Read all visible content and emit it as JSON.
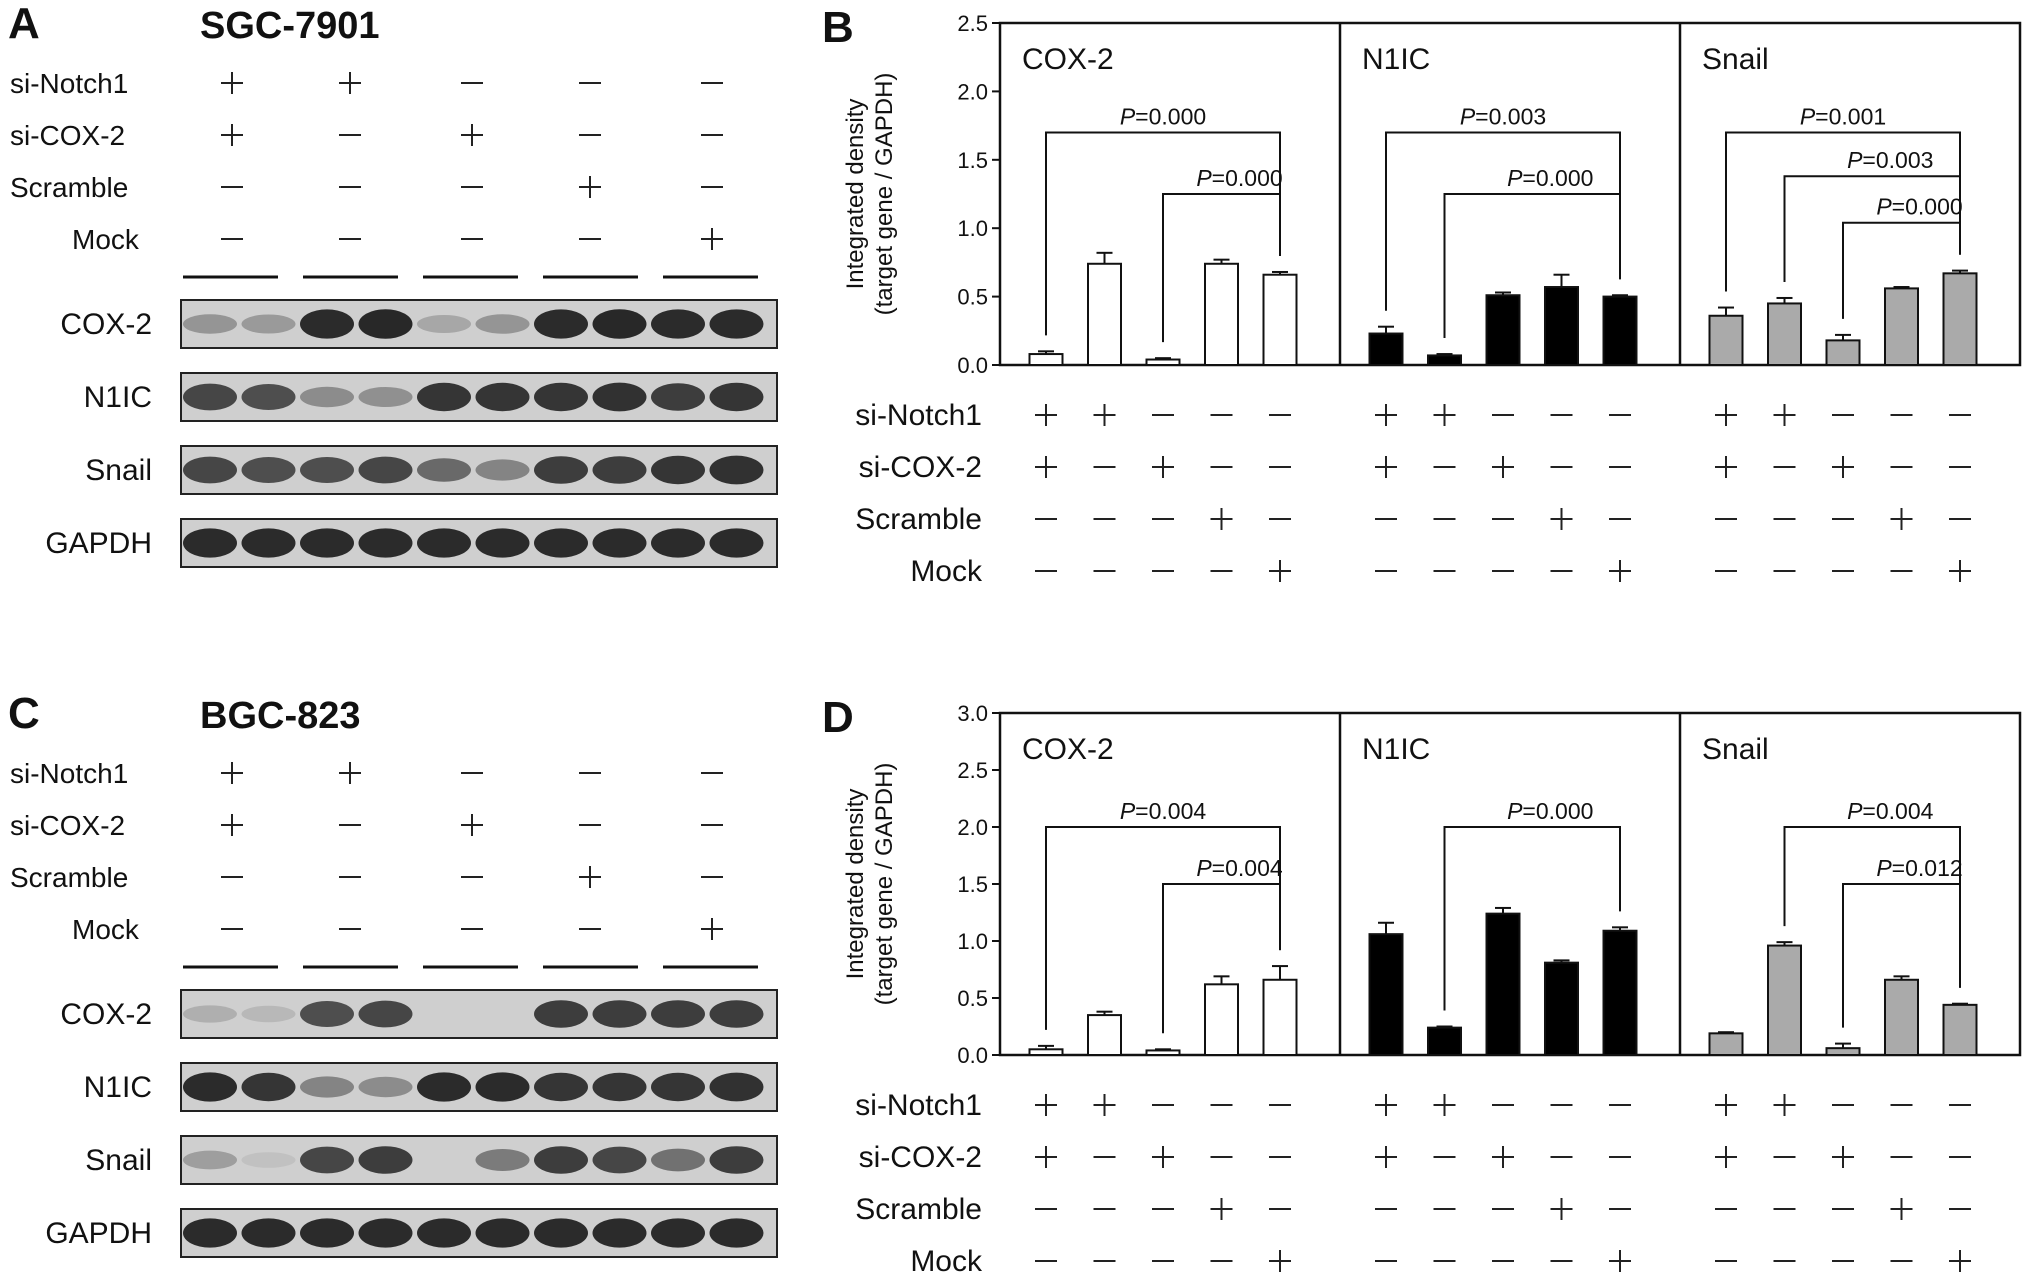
{
  "western_blots": [
    {
      "panel_label": "A",
      "cell_line": "SGC-7901",
      "conditions": [
        {
          "label": "si-Notch1",
          "signs": [
            "+",
            "+",
            "−",
            "−",
            "−"
          ]
        },
        {
          "label": "si-COX-2",
          "signs": [
            "+",
            "−",
            "+",
            "−",
            "−"
          ]
        },
        {
          "label": "Scramble",
          "signs": [
            "−",
            "−",
            "−",
            "+",
            "−"
          ]
        },
        {
          "label": "Mock",
          "signs": [
            "−",
            "−",
            "−",
            "−",
            "+"
          ]
        }
      ],
      "blots": [
        {
          "label": "COX-2",
          "intensity": [
            0.35,
            0.32,
            0.95,
            0.97,
            0.25,
            0.35,
            0.95,
            0.97,
            0.95,
            0.95
          ]
        },
        {
          "label": "N1IC",
          "intensity": [
            0.8,
            0.75,
            0.4,
            0.38,
            0.9,
            0.9,
            0.9,
            0.92,
            0.85,
            0.9
          ]
        },
        {
          "label": "Snail",
          "intensity": [
            0.8,
            0.75,
            0.75,
            0.8,
            0.6,
            0.45,
            0.85,
            0.85,
            0.9,
            0.92
          ]
        },
        {
          "label": "GAPDH",
          "intensity": [
            0.95,
            0.95,
            0.95,
            0.95,
            0.95,
            0.95,
            0.95,
            0.95,
            0.95,
            0.95
          ]
        }
      ]
    },
    {
      "panel_label": "C",
      "cell_line": "BGC-823",
      "conditions": [
        {
          "label": "si-Notch1",
          "signs": [
            "+",
            "+",
            "−",
            "−",
            "−"
          ]
        },
        {
          "label": "si-COX-2",
          "signs": [
            "+",
            "−",
            "+",
            "−",
            "−"
          ]
        },
        {
          "label": "Scramble",
          "signs": [
            "−",
            "−",
            "−",
            "+",
            "−"
          ]
        },
        {
          "label": "Mock",
          "signs": [
            "−",
            "−",
            "−",
            "−",
            "+"
          ]
        }
      ],
      "blots": [
        {
          "label": "COX-2",
          "intensity": [
            0.2,
            0.15,
            0.75,
            0.8,
            0.0,
            0.0,
            0.85,
            0.85,
            0.85,
            0.85
          ]
        },
        {
          "label": "N1IC",
          "intensity": [
            0.95,
            0.9,
            0.45,
            0.4,
            0.95,
            0.95,
            0.9,
            0.9,
            0.9,
            0.92
          ]
        },
        {
          "label": "Snail",
          "intensity": [
            0.3,
            0.1,
            0.8,
            0.85,
            0.0,
            0.5,
            0.85,
            0.8,
            0.55,
            0.85
          ]
        },
        {
          "label": "GAPDH",
          "intensity": [
            0.95,
            0.95,
            0.95,
            0.95,
            0.95,
            0.95,
            0.95,
            0.95,
            0.95,
            0.95
          ]
        }
      ]
    }
  ],
  "chart_data": [
    {
      "panel_label": "B",
      "type": "bar",
      "ylabel_line1": "Integrated density",
      "ylabel_line2": "(target gene / GAPDH)",
      "ylim": [
        0,
        2.5
      ],
      "yticks": [
        "0.0",
        "0.5",
        "1.0",
        "1.5",
        "2.0",
        "2.5"
      ],
      "conditions": [
        {
          "label": "si-Notch1",
          "signs": [
            "+",
            "+",
            "−",
            "−",
            "−"
          ]
        },
        {
          "label": "si-COX-2",
          "signs": [
            "+",
            "−",
            "+",
            "−",
            "−"
          ]
        },
        {
          "label": "Scramble",
          "signs": [
            "−",
            "−",
            "−",
            "+",
            "−"
          ]
        },
        {
          "label": "Mock",
          "signs": [
            "−",
            "−",
            "−",
            "−",
            "+"
          ]
        }
      ],
      "groups": [
        {
          "name": "COX-2",
          "color": "#ffffff",
          "values": [
            0.08,
            0.74,
            0.04,
            0.74,
            0.66
          ],
          "errors": [
            0.02,
            0.08,
            0.01,
            0.03,
            0.02
          ],
          "pvalues": [
            {
              "from": 0,
              "to": 4,
              "text": "=0.000",
              "y": 1.7
            },
            {
              "from": 2,
              "to": 4,
              "text": "=0.000",
              "y": 1.25
            }
          ]
        },
        {
          "name": "N1IC",
          "color": "#000000",
          "values": [
            0.23,
            0.07,
            0.51,
            0.57,
            0.5
          ],
          "errors": [
            0.05,
            0.01,
            0.02,
            0.09,
            0.01
          ],
          "pvalues": [
            {
              "from": 0,
              "to": 4,
              "text": "=0.003",
              "y": 1.7
            },
            {
              "from": 1,
              "to": 4,
              "text": "=0.000",
              "y": 1.25
            }
          ]
        },
        {
          "name": "Snail",
          "color": "#aaaaaa",
          "values": [
            0.36,
            0.45,
            0.18,
            0.56,
            0.67
          ],
          "errors": [
            0.06,
            0.04,
            0.04,
            0.01,
            0.02
          ],
          "pvalues": [
            {
              "from": 0,
              "to": 4,
              "text": "=0.001",
              "y": 1.7
            },
            {
              "from": 1,
              "to": 4,
              "text": "=0.003",
              "y": 1.38
            },
            {
              "from": 2,
              "to": 4,
              "text": "=0.000",
              "y": 1.04
            }
          ]
        }
      ]
    },
    {
      "panel_label": "D",
      "type": "bar",
      "ylabel_line1": "Integrated density",
      "ylabel_line2": "(target gene / GAPDH)",
      "ylim": [
        0,
        3.0
      ],
      "yticks": [
        "0.0",
        "0.5",
        "1.0",
        "1.5",
        "2.0",
        "2.5",
        "3.0"
      ],
      "conditions": [
        {
          "label": "si-Notch1",
          "signs": [
            "+",
            "+",
            "−",
            "−",
            "−"
          ]
        },
        {
          "label": "si-COX-2",
          "signs": [
            "+",
            "−",
            "+",
            "−",
            "−"
          ]
        },
        {
          "label": "Scramble",
          "signs": [
            "−",
            "−",
            "−",
            "+",
            "−"
          ]
        },
        {
          "label": "Mock",
          "signs": [
            "−",
            "−",
            "−",
            "−",
            "+"
          ]
        }
      ],
      "groups": [
        {
          "name": "COX-2",
          "color": "#ffffff",
          "values": [
            0.05,
            0.35,
            0.04,
            0.62,
            0.66
          ],
          "errors": [
            0.03,
            0.03,
            0.01,
            0.07,
            0.12
          ],
          "pvalues": [
            {
              "from": 0,
              "to": 4,
              "text": "=0.004",
              "y": 2.0
            },
            {
              "from": 2,
              "to": 4,
              "text": "=0.004",
              "y": 1.5
            }
          ]
        },
        {
          "name": "N1IC",
          "color": "#000000",
          "values": [
            1.06,
            0.24,
            1.24,
            0.81,
            1.09
          ],
          "errors": [
            0.1,
            0.01,
            0.05,
            0.02,
            0.03
          ],
          "pvalues": [
            {
              "from": 1,
              "to": 4,
              "text": "=0.000",
              "y": 2.0
            }
          ]
        },
        {
          "name": "Snail",
          "color": "#aaaaaa",
          "values": [
            0.19,
            0.96,
            0.06,
            0.66,
            0.44
          ],
          "errors": [
            0.01,
            0.03,
            0.04,
            0.03,
            0.01
          ],
          "pvalues": [
            {
              "from": 1,
              "to": 4,
              "text": "=0.004",
              "y": 2.0
            },
            {
              "from": 2,
              "to": 4,
              "text": "=0.012",
              "y": 1.5
            }
          ]
        }
      ]
    }
  ]
}
